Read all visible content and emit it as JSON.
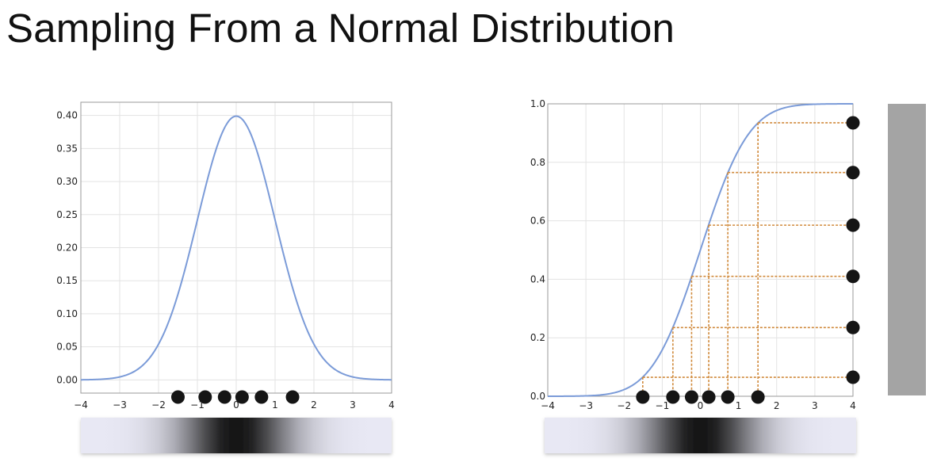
{
  "slide": {
    "title": "Sampling From a Normal Distribution"
  },
  "colors": {
    "curve": "#7b9bd8",
    "guide": "#d08a3c",
    "dot": "#151515",
    "grid": "#e3e3e3",
    "frame": "#9a9a9a",
    "uniform_bar": "#a4a4a4"
  },
  "chart_data": [
    {
      "type": "line",
      "function": "normal pdf (mean 0, sd 1)",
      "title": "",
      "xlabel": "",
      "ylabel": "",
      "xlim": [
        -4,
        4
      ],
      "ylim": [
        -0.02,
        0.42
      ],
      "xticks": [
        "−4",
        "−3",
        "−2",
        "−1",
        "0",
        "1",
        "2",
        "3",
        "4"
      ],
      "yticks": [
        "0.00",
        "0.05",
        "0.10",
        "0.15",
        "0.20",
        "0.25",
        "0.30",
        "0.35",
        "0.40"
      ],
      "grid": true,
      "samples": [
        -1.5,
        -0.8,
        -0.3,
        0.15,
        0.65,
        1.45
      ],
      "colorbar": "density strip under the x-axis, black at 0, fading to white toward ±4"
    },
    {
      "type": "line",
      "function": "normal cdf (mean 0, sd 1)",
      "title": "",
      "xlabel": "",
      "ylabel": "",
      "xlim": [
        -4,
        4
      ],
      "ylim": [
        0,
        1
      ],
      "xticks": [
        "−4",
        "−3",
        "−2",
        "−1",
        "0",
        "1",
        "2",
        "3",
        "4"
      ],
      "yticks": [
        "0.0",
        "0.2",
        "0.4",
        "0.6",
        "0.8",
        "1.0"
      ],
      "grid": true,
      "uniform_samples": [
        0.065,
        0.235,
        0.41,
        0.585,
        0.765,
        0.935
      ],
      "inverse_cdf_samples": [
        -1.51,
        -0.72,
        -0.23,
        0.22,
        0.72,
        1.51
      ],
      "colorbar": "density strip under the x-axis, black at 0, fading to white toward ±4; uniform grey bar on the right"
    }
  ]
}
